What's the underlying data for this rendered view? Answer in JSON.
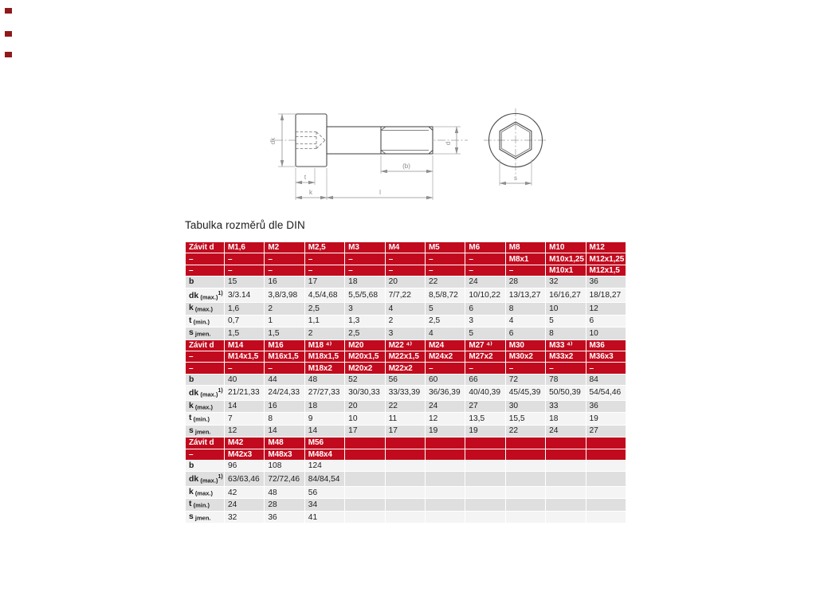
{
  "title": "Tabulka rozměrů dle DIN",
  "colors": {
    "header_red": "#c10a1e",
    "red_mark": "#8f1a1a",
    "row_even": "#dfdfe0",
    "row_odd": "#f4f4f4",
    "header_text": "#ffffff",
    "cell_text": "#1d1d1d"
  },
  "drawing": {
    "labels": {
      "dk": "dk",
      "d": "d",
      "t": "t",
      "k": "k",
      "l": "l",
      "b": "(b)",
      "s": "s"
    }
  },
  "table": {
    "sections": [
      {
        "headers": [
          [
            "Závit d",
            "M1,6",
            "M2",
            "M2,5",
            "M3",
            "M4",
            "M5",
            "M6",
            "M8",
            "M10",
            "M12"
          ],
          [
            "–",
            "–",
            "–",
            "–",
            "–",
            "–",
            "–",
            "–",
            "M8x1",
            "M10x1,25",
            "M12x1,25"
          ],
          [
            "–",
            "–",
            "–",
            "–",
            "–",
            "–",
            "–",
            "–",
            "–",
            "M10x1",
            "M12x1,5"
          ]
        ],
        "rows": [
          {
            "label": {
              "main": "b",
              "suffix": "",
              "sup": ""
            },
            "values": [
              "15",
              "16",
              "17",
              "18",
              "20",
              "22",
              "24",
              "28",
              "32",
              "36"
            ]
          },
          {
            "label": {
              "main": "dk",
              "suffix": "(max.)",
              "sup": "1)"
            },
            "values": [
              "3/3.14",
              "3,8/3,98",
              "4,5/4,68",
              "5,5/5,68",
              "7/7,22",
              "8,5/8,72",
              "10/10,22",
              "13/13,27",
              "16/16,27",
              "18/18,27"
            ]
          },
          {
            "label": {
              "main": "k",
              "suffix": "(max.)",
              "sup": ""
            },
            "values": [
              "1,6",
              "2",
              "2,5",
              "3",
              "4",
              "5",
              "6",
              "8",
              "10",
              "12"
            ]
          },
          {
            "label": {
              "main": "t",
              "suffix": "(min.)",
              "sup": ""
            },
            "values": [
              "0,7",
              "1",
              "1,1",
              "1,3",
              "2",
              "2,5",
              "3",
              "4",
              "5",
              "6"
            ]
          },
          {
            "label": {
              "main": "s",
              "suffix": "jmen.",
              "sup": ""
            },
            "values": [
              "1,5",
              "1,5",
              "2",
              "2,5",
              "3",
              "4",
              "5",
              "6",
              "8",
              "10"
            ]
          }
        ]
      },
      {
        "headers": [
          [
            "Závit d",
            "M14",
            "M16",
            "M18 ⁴⁾",
            "M20",
            "M22 ⁴⁾",
            "M24",
            "M27 ⁴⁾",
            "M30",
            "M33 ⁴⁾",
            "M36"
          ],
          [
            "–",
            "M14x1,5",
            "M16x1,5",
            "M18x1,5",
            "M20x1,5",
            "M22x1,5",
            "M24x2",
            "M27x2",
            "M30x2",
            "M33x2",
            "M36x3"
          ],
          [
            "–",
            "–",
            "–",
            "M18x2",
            "M20x2",
            "M22x2",
            "–",
            "–",
            "–",
            "–",
            "–"
          ]
        ],
        "rows": [
          {
            "label": {
              "main": "b",
              "suffix": "",
              "sup": ""
            },
            "values": [
              "40",
              "44",
              "48",
              "52",
              "56",
              "60",
              "66",
              "72",
              "78",
              "84"
            ]
          },
          {
            "label": {
              "main": "dk",
              "suffix": "(max.)",
              "sup": "1)"
            },
            "values": [
              "21/21,33",
              "24/24,33",
              "27/27,33",
              "30/30,33",
              "33/33,39",
              "36/36,39",
              "40/40,39",
              "45/45,39",
              "50/50,39",
              "54/54,46"
            ]
          },
          {
            "label": {
              "main": "k",
              "suffix": "(max.)",
              "sup": ""
            },
            "values": [
              "14",
              "16",
              "18",
              "20",
              "22",
              "24",
              "27",
              "30",
              "33",
              "36"
            ]
          },
          {
            "label": {
              "main": "t",
              "suffix": "(min.)",
              "sup": ""
            },
            "values": [
              "7",
              "8",
              "9",
              "10",
              "11",
              "12",
              "13,5",
              "15,5",
              "18",
              "19"
            ]
          },
          {
            "label": {
              "main": "s",
              "suffix": "jmen.",
              "sup": ""
            },
            "values": [
              "12",
              "14",
              "14",
              "17",
              "17",
              "19",
              "19",
              "22",
              "24",
              "27"
            ]
          }
        ]
      },
      {
        "headers": [
          [
            "Závit d",
            "M42",
            "M48",
            "M56",
            "",
            "",
            "",
            "",
            "",
            "",
            ""
          ],
          [
            "–",
            "M42x3",
            "M48x3",
            "M48x4",
            "",
            "",
            "",
            "",
            "",
            "",
            ""
          ]
        ],
        "rows": [
          {
            "label": {
              "main": "b",
              "suffix": "",
              "sup": ""
            },
            "values": [
              "96",
              "108",
              "124",
              "",
              "",
              "",
              "",
              "",
              "",
              ""
            ]
          },
          {
            "label": {
              "main": "dk",
              "suffix": "(max.)",
              "sup": "1)"
            },
            "values": [
              "63/63,46",
              "72/72,46",
              "84/84,54",
              "",
              "",
              "",
              "",
              "",
              "",
              ""
            ]
          },
          {
            "label": {
              "main": "k",
              "suffix": "(max.)",
              "sup": ""
            },
            "values": [
              "42",
              "48",
              "56",
              "",
              "",
              "",
              "",
              "",
              "",
              ""
            ]
          },
          {
            "label": {
              "main": "t",
              "suffix": "(min.)",
              "sup": ""
            },
            "values": [
              "24",
              "28",
              "34",
              "",
              "",
              "",
              "",
              "",
              "",
              ""
            ]
          },
          {
            "label": {
              "main": "s",
              "suffix": "jmen.",
              "sup": ""
            },
            "values": [
              "32",
              "36",
              "41",
              "",
              "",
              "",
              "",
              "",
              "",
              ""
            ]
          }
        ]
      }
    ]
  }
}
